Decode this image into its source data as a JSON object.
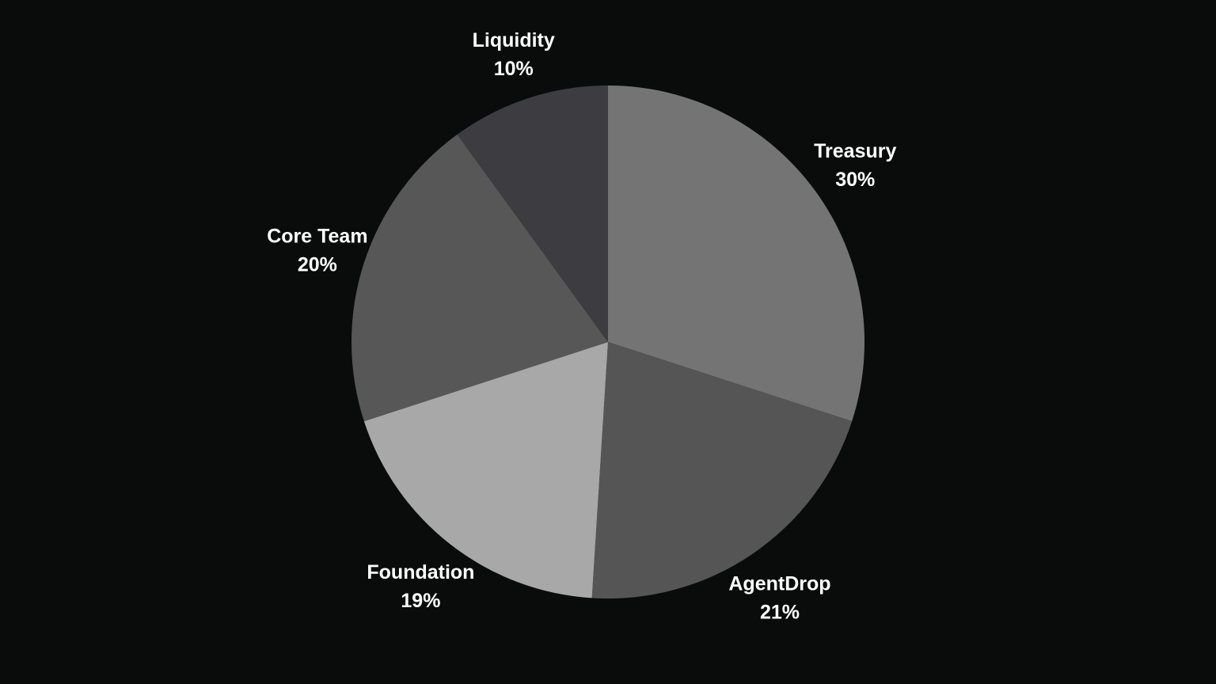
{
  "chart_data": {
    "type": "pie",
    "title": "",
    "slices": [
      {
        "label": "Treasury",
        "value": 30,
        "percent_label": "30%",
        "color": "#747474"
      },
      {
        "label": "AgentDrop",
        "value": 21,
        "percent_label": "21%",
        "color": "#555555"
      },
      {
        "label": "Foundation",
        "value": 19,
        "percent_label": "19%",
        "color": "#a8a8a8"
      },
      {
        "label": "Core Team",
        "value": 20,
        "percent_label": "20%",
        "color": "#575757"
      },
      {
        "label": "Liquidity",
        "value": 10,
        "percent_label": "10%",
        "color": "#3c3c41"
      }
    ],
    "start_angle": "top",
    "direction": "clockwise",
    "legend": "none",
    "background_color": "#0a0c0c",
    "label_color": "#ffffff"
  }
}
